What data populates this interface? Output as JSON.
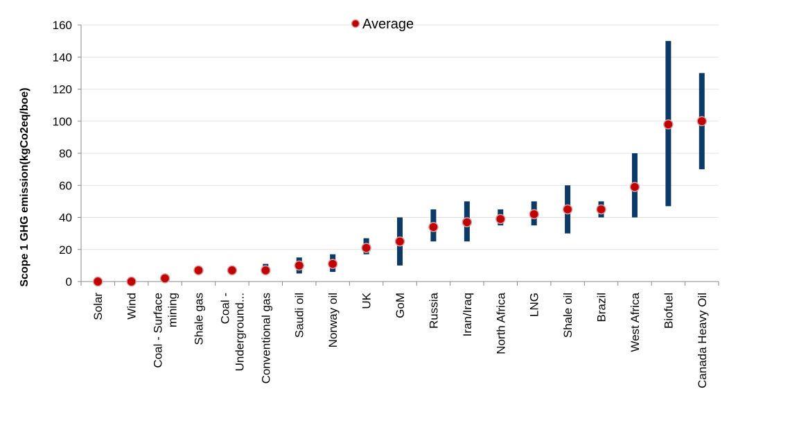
{
  "chart_data": {
    "type": "scatter",
    "title": "",
    "xlabel": "",
    "ylabel": "Scope 1 GHG emission(kgCo2eq/boe)",
    "ylim": [
      0,
      160
    ],
    "yticks": [
      "0",
      "20",
      "40",
      "60",
      "80",
      "100",
      "120",
      "140",
      "160"
    ],
    "grid": true,
    "legend": {
      "position": "top",
      "entries": [
        "Average"
      ]
    },
    "categories": [
      "Solar",
      "Wind",
      "Coal - Surface mining",
      "Shale gas",
      "Coal - Underground...",
      "Conventional gas",
      "Saudi oil",
      "Norway oil",
      "UK",
      "GoM",
      "Russia",
      "Iran/Iraq",
      "North Africa",
      "LNG",
      "Shale oil",
      "Brazil",
      "West Africa",
      "Biofuel",
      "Canada Heavy Oil"
    ],
    "tick_labels": [
      [
        "Solar"
      ],
      [
        "Wind"
      ],
      [
        "Coal - Surface",
        "mining"
      ],
      [
        "Shale gas"
      ],
      [
        "Coal -",
        "Underground..."
      ],
      [
        "Conventional gas"
      ],
      [
        "Saudi oil"
      ],
      [
        "Norway oil"
      ],
      [
        "UK"
      ],
      [
        "GoM"
      ],
      [
        "Russia"
      ],
      [
        "Iran/Iraq"
      ],
      [
        "North Africa"
      ],
      [
        "LNG"
      ],
      [
        "Shale oil"
      ],
      [
        "Brazil"
      ],
      [
        "West Africa"
      ],
      [
        "Biofuel"
      ],
      [
        "Canada Heavy Oil"
      ]
    ],
    "series": [
      {
        "name": "Average",
        "values": [
          0,
          0,
          2,
          7,
          7,
          7,
          10,
          11,
          21,
          25,
          34,
          37,
          39,
          42,
          45,
          45,
          59,
          98,
          100
        ]
      }
    ],
    "ranges": {
      "low": [
        0,
        0,
        2,
        7,
        7,
        6,
        5,
        6,
        17,
        10,
        25,
        25,
        35,
        35,
        30,
        40,
        40,
        47,
        70
      ],
      "high": [
        0,
        0,
        2,
        7,
        7,
        11,
        15,
        17,
        27,
        40,
        45,
        50,
        45,
        50,
        60,
        50,
        80,
        150,
        130
      ]
    },
    "colors": {
      "marker": "#c00000",
      "marker_edge": "#d9a0a0",
      "range": "#0b3a66",
      "grid": "#e3e3e3",
      "axis": "#888888"
    }
  }
}
